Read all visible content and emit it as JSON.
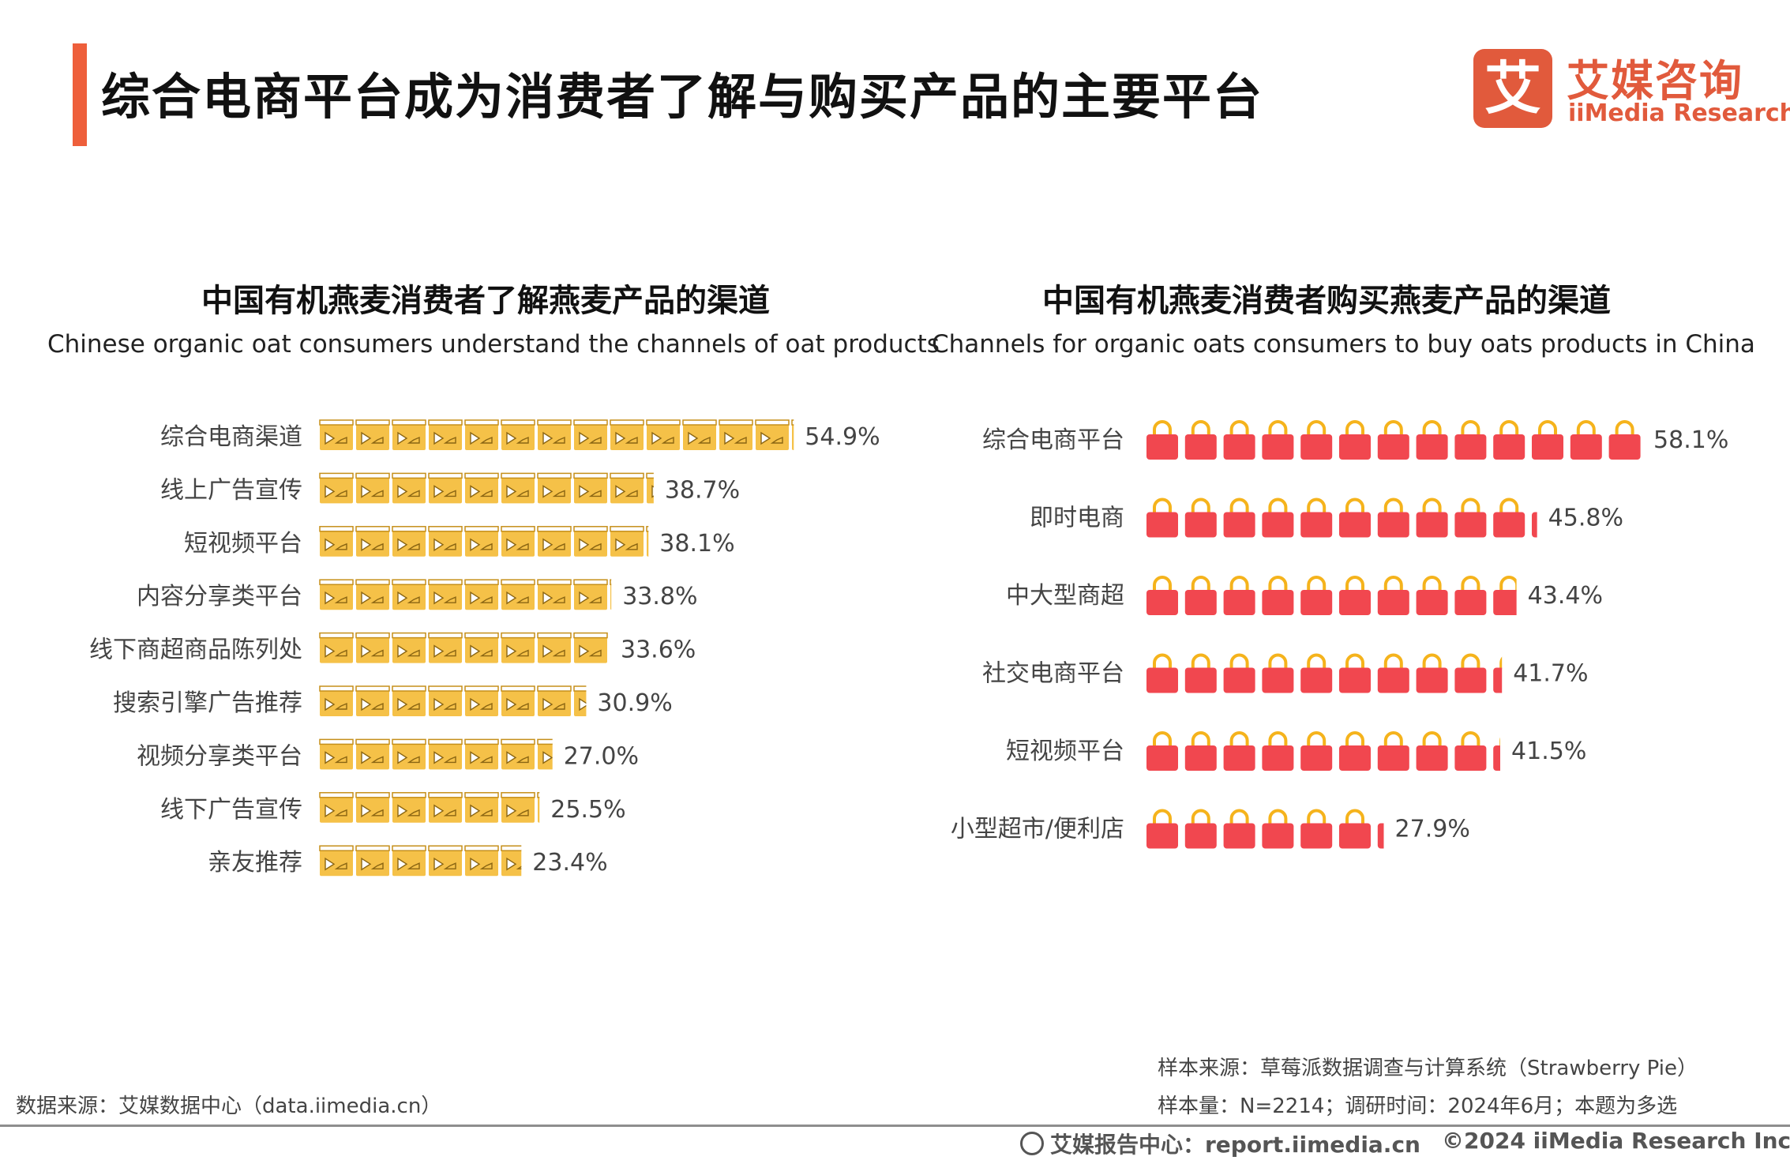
{
  "header": {
    "title": "综合电商平台成为消费者了解与购买产品的主要平台",
    "logo_mark": "艾",
    "logo_cn": "艾媒咨询",
    "logo_en": "iiMedia Research",
    "accent_color": "#ee5f3b"
  },
  "chart_data": [
    {
      "type": "bar",
      "title": "中国有机燕麦消费者了解燕麦产品的渠道",
      "subtitle": "Chinese organic oat consumers understand the channels of oat products",
      "icon": "video-icon",
      "color": "#f5c148",
      "categories": [
        "综合电商渠道",
        "线上广告宣传",
        "短视频平台",
        "内容分享类平台",
        "线下商超商品陈列处",
        "搜索引擎广告推荐",
        "视频分享类平台",
        "线下广告宣传",
        "亲友推荐"
      ],
      "values": [
        54.9,
        38.7,
        38.1,
        33.8,
        33.6,
        30.9,
        27.0,
        25.5,
        23.4
      ],
      "labels": [
        "54.9%",
        "38.7%",
        "38.1%",
        "33.8%",
        "33.6%",
        "30.9%",
        "27.0%",
        "25.5%",
        "23.4%"
      ],
      "unit_percent_per_icon": 4.2
    },
    {
      "type": "bar",
      "title": "中国有机燕麦消费者购买燕麦产品的渠道",
      "subtitle": "Channels for organic oats consumers to buy oats products in China",
      "icon": "shopping-bag-icon",
      "color": "#f1474f",
      "handle_color": "#f5b31c",
      "categories": [
        "综合电商平台",
        "即时电商",
        "中大型商超",
        "社交电商平台",
        "短视频平台",
        "小型超市/便利店"
      ],
      "values": [
        58.1,
        45.8,
        43.4,
        41.7,
        41.5,
        27.9
      ],
      "labels": [
        "58.1%",
        "45.8%",
        "43.4%",
        "41.7%",
        "41.5%",
        "27.9%"
      ],
      "unit_percent_per_icon": 4.5
    }
  ],
  "footer": {
    "data_source": "数据来源：艾媒数据中心（data.iimedia.cn）",
    "sample_source": "样本来源：草莓派数据调查与计算系统（Strawberry Pie）",
    "sample_info": "样本量：N=2214；调研时间：2024年6月；本题为多选",
    "report_center": "艾媒报告中心：report.iimedia.cn",
    "copyright": "©2024  iiMedia Research Inc"
  }
}
